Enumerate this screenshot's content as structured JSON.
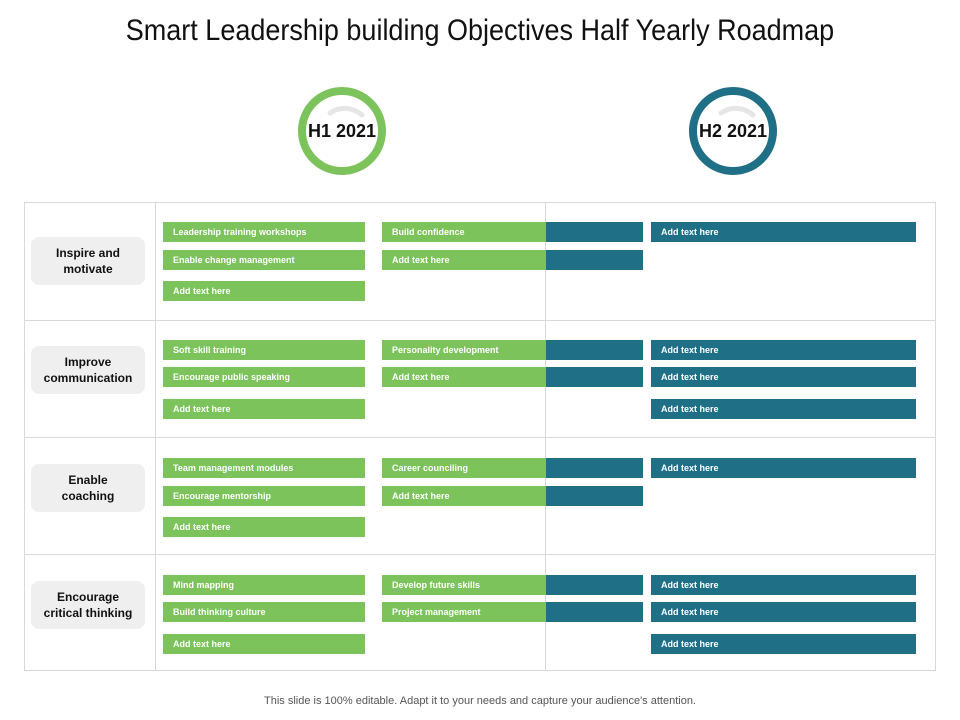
{
  "title": "Smart Leadership building Objectives Half Yearly Roadmap",
  "periods": [
    "H1 2021",
    "H2 2021"
  ],
  "colors": {
    "h1": "#7cc35c",
    "h2": "#1f6f86",
    "label_bg": "#efefef"
  },
  "rows": [
    {
      "label": "Inspire and\nmotivate",
      "h1_col1": [
        "Leadership training workshops",
        "Enable change management",
        "Add text here"
      ],
      "h1_col2": [
        "Build confidence",
        "Add text here"
      ],
      "h2_col1": [
        "",
        ""
      ],
      "h2_col2": [
        "Add text here"
      ]
    },
    {
      "label": "Improve\ncommunication",
      "h1_col1": [
        "Soft skill training",
        "Encourage public speaking",
        "Add text here"
      ],
      "h1_col2": [
        "Personality development",
        "Add text here"
      ],
      "h2_col1": [
        "",
        ""
      ],
      "h2_col2": [
        "Add text here",
        "Add text here",
        "Add text here"
      ]
    },
    {
      "label": "Enable\ncoaching",
      "h1_col1": [
        "Team management modules",
        "Encourage mentorship",
        "Add text here"
      ],
      "h1_col2": [
        "Career counciling",
        "Add text here"
      ],
      "h2_col1": [
        "",
        ""
      ],
      "h2_col2": [
        "Add text here"
      ]
    },
    {
      "label": "Encourage\ncritical thinking",
      "h1_col1": [
        "Mind mapping",
        "Build thinking culture",
        "Add text here"
      ],
      "h1_col2": [
        "Develop future skills",
        "Project management"
      ],
      "h2_col1": [
        "",
        ""
      ],
      "h2_col2": [
        "Add text here",
        "Add text here",
        "Add text here"
      ]
    }
  ],
  "footer": "This slide is 100% editable. Adapt it to your needs and capture your audience's attention."
}
